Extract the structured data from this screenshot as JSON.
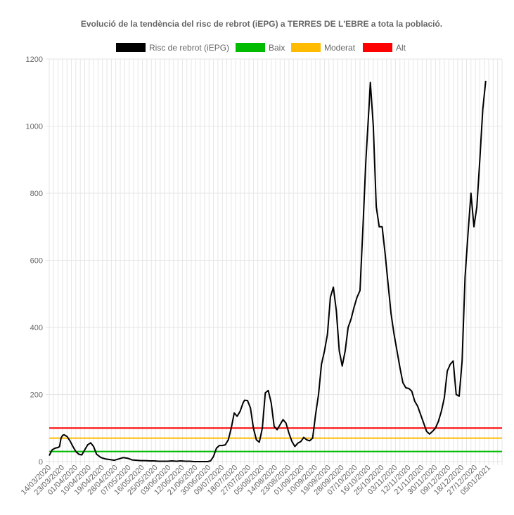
{
  "chart_data": {
    "type": "line",
    "title": "Evolució de la tendència del risc de rebrot (iEPG) a TERRES DE L'EBRE a tota la població.",
    "xlabel": "",
    "ylabel": "",
    "ylim": [
      0,
      1200
    ],
    "yticks": [
      0,
      200,
      400,
      600,
      800,
      1000,
      1200
    ],
    "grid": true,
    "legend_position": "top-center",
    "x_start": "14/03/2020",
    "x_end": "14/01/2021",
    "xtick_labels": [
      "14/03/2020",
      "23/03/2020",
      "01/04/2020",
      "10/04/2020",
      "19/04/2020",
      "28/04/2020",
      "07/05/2020",
      "16/05/2020",
      "25/05/2020",
      "03/06/2020",
      "12/06/2020",
      "21/06/2020",
      "30/06/2020",
      "09/07/2020",
      "18/07/2020",
      "27/07/2020",
      "05/08/2020",
      "14/08/2020",
      "23/08/2020",
      "01/09/2020",
      "10/09/2020",
      "19/09/2020",
      "28/09/2020",
      "07/10/2020",
      "16/10/2020",
      "25/10/2020",
      "03/11/2020",
      "12/11/2020",
      "21/11/2020",
      "30/11/2020",
      "09/12/2020",
      "18/12/2020",
      "27/12/2020",
      "05/01/2021"
    ],
    "series": [
      {
        "name": "Risc de rebrot (iEPG)",
        "color": "#000000",
        "points": [
          [
            "14/03/2020",
            18
          ],
          [
            "16/03/2020",
            35
          ],
          [
            "18/03/2020",
            40
          ],
          [
            "20/03/2020",
            42
          ],
          [
            "21/03/2020",
            45
          ],
          [
            "22/03/2020",
            70
          ],
          [
            "23/03/2020",
            78
          ],
          [
            "24/03/2020",
            80
          ],
          [
            "26/03/2020",
            75
          ],
          [
            "28/03/2020",
            62
          ],
          [
            "30/03/2020",
            45
          ],
          [
            "01/04/2020",
            30
          ],
          [
            "03/04/2020",
            22
          ],
          [
            "05/04/2020",
            20
          ],
          [
            "07/04/2020",
            35
          ],
          [
            "09/04/2020",
            50
          ],
          [
            "11/04/2020",
            56
          ],
          [
            "13/04/2020",
            45
          ],
          [
            "15/04/2020",
            22
          ],
          [
            "18/04/2020",
            12
          ],
          [
            "21/04/2020",
            8
          ],
          [
            "24/04/2020",
            6
          ],
          [
            "27/04/2020",
            4
          ],
          [
            "30/04/2020",
            8
          ],
          [
            "03/05/2020",
            12
          ],
          [
            "06/05/2020",
            10
          ],
          [
            "09/05/2020",
            5
          ],
          [
            "12/05/2020",
            4
          ],
          [
            "15/05/2020",
            3
          ],
          [
            "18/05/2020",
            3
          ],
          [
            "21/05/2020",
            2
          ],
          [
            "24/05/2020",
            2
          ],
          [
            "27/05/2020",
            1
          ],
          [
            "30/05/2020",
            1
          ],
          [
            "02/06/2020",
            1
          ],
          [
            "05/06/2020",
            2
          ],
          [
            "08/06/2020",
            1
          ],
          [
            "11/06/2020",
            2
          ],
          [
            "14/06/2020",
            1
          ],
          [
            "17/06/2020",
            1
          ],
          [
            "20/06/2020",
            0
          ],
          [
            "23/06/2020",
            0
          ],
          [
            "26/06/2020",
            0
          ],
          [
            "29/06/2020",
            0
          ],
          [
            "01/07/2020",
            2
          ],
          [
            "03/07/2020",
            15
          ],
          [
            "05/07/2020",
            40
          ],
          [
            "07/07/2020",
            48
          ],
          [
            "09/07/2020",
            48
          ],
          [
            "11/07/2020",
            50
          ],
          [
            "13/07/2020",
            65
          ],
          [
            "15/07/2020",
            100
          ],
          [
            "17/07/2020",
            145
          ],
          [
            "19/07/2020",
            135
          ],
          [
            "21/07/2020",
            150
          ],
          [
            "23/07/2020",
            175
          ],
          [
            "24/07/2020",
            183
          ],
          [
            "26/07/2020",
            182
          ],
          [
            "28/07/2020",
            160
          ],
          [
            "30/07/2020",
            100
          ],
          [
            "01/08/2020",
            65
          ],
          [
            "03/08/2020",
            58
          ],
          [
            "05/08/2020",
            100
          ],
          [
            "07/08/2020",
            205
          ],
          [
            "09/08/2020",
            212
          ],
          [
            "11/08/2020",
            175
          ],
          [
            "13/08/2020",
            105
          ],
          [
            "15/08/2020",
            95
          ],
          [
            "17/08/2020",
            110
          ],
          [
            "19/08/2020",
            125
          ],
          [
            "21/08/2020",
            115
          ],
          [
            "23/08/2020",
            85
          ],
          [
            "25/08/2020",
            60
          ],
          [
            "27/08/2020",
            45
          ],
          [
            "29/08/2020",
            55
          ],
          [
            "31/08/2020",
            60
          ],
          [
            "02/09/2020",
            72
          ],
          [
            "04/09/2020",
            65
          ],
          [
            "06/09/2020",
            62
          ],
          [
            "08/09/2020",
            70
          ],
          [
            "10/09/2020",
            140
          ],
          [
            "12/09/2020",
            200
          ],
          [
            "14/09/2020",
            290
          ],
          [
            "16/09/2020",
            330
          ],
          [
            "18/09/2020",
            380
          ],
          [
            "20/09/2020",
            490
          ],
          [
            "22/09/2020",
            520
          ],
          [
            "24/09/2020",
            450
          ],
          [
            "26/09/2020",
            330
          ],
          [
            "28/09/2020",
            285
          ],
          [
            "30/09/2020",
            330
          ],
          [
            "02/10/2020",
            400
          ],
          [
            "04/10/2020",
            425
          ],
          [
            "06/10/2020",
            460
          ],
          [
            "08/10/2020",
            490
          ],
          [
            "10/10/2020",
            510
          ],
          [
            "12/10/2020",
            700
          ],
          [
            "14/10/2020",
            900
          ],
          [
            "16/10/2020",
            1050
          ],
          [
            "17/10/2020",
            1130
          ],
          [
            "19/10/2020",
            1000
          ],
          [
            "21/10/2020",
            760
          ],
          [
            "23/10/2020",
            700
          ],
          [
            "25/10/2020",
            700
          ],
          [
            "27/10/2020",
            620
          ],
          [
            "29/10/2020",
            530
          ],
          [
            "31/10/2020",
            440
          ],
          [
            "02/11/2020",
            380
          ],
          [
            "04/11/2020",
            330
          ],
          [
            "06/11/2020",
            280
          ],
          [
            "08/11/2020",
            235
          ],
          [
            "10/11/2020",
            220
          ],
          [
            "12/11/2020",
            218
          ],
          [
            "14/11/2020",
            210
          ],
          [
            "16/11/2020",
            180
          ],
          [
            "18/11/2020",
            165
          ],
          [
            "20/11/2020",
            140
          ],
          [
            "22/11/2020",
            115
          ],
          [
            "24/11/2020",
            90
          ],
          [
            "26/11/2020",
            82
          ],
          [
            "28/11/2020",
            90
          ],
          [
            "30/11/2020",
            100
          ],
          [
            "02/12/2020",
            120
          ],
          [
            "04/12/2020",
            150
          ],
          [
            "06/12/2020",
            190
          ],
          [
            "08/12/2020",
            270
          ],
          [
            "10/12/2020",
            290
          ],
          [
            "12/12/2020",
            300
          ],
          [
            "14/12/2020",
            200
          ],
          [
            "16/12/2020",
            195
          ],
          [
            "18/12/2020",
            300
          ],
          [
            "20/12/2020",
            550
          ],
          [
            "22/12/2020",
            680
          ],
          [
            "24/12/2020",
            800
          ],
          [
            "26/12/2020",
            700
          ],
          [
            "28/12/2020",
            760
          ],
          [
            "30/12/2020",
            900
          ],
          [
            "01/01/2021",
            1050
          ],
          [
            "03/01/2021",
            1135
          ]
        ]
      },
      {
        "name": "Baix",
        "color": "#00bb00",
        "constant": 30
      },
      {
        "name": "Moderat",
        "color": "#ffbb00",
        "constant": 70
      },
      {
        "name": "Alt",
        "color": "#ff0000",
        "constant": 100
      }
    ]
  }
}
